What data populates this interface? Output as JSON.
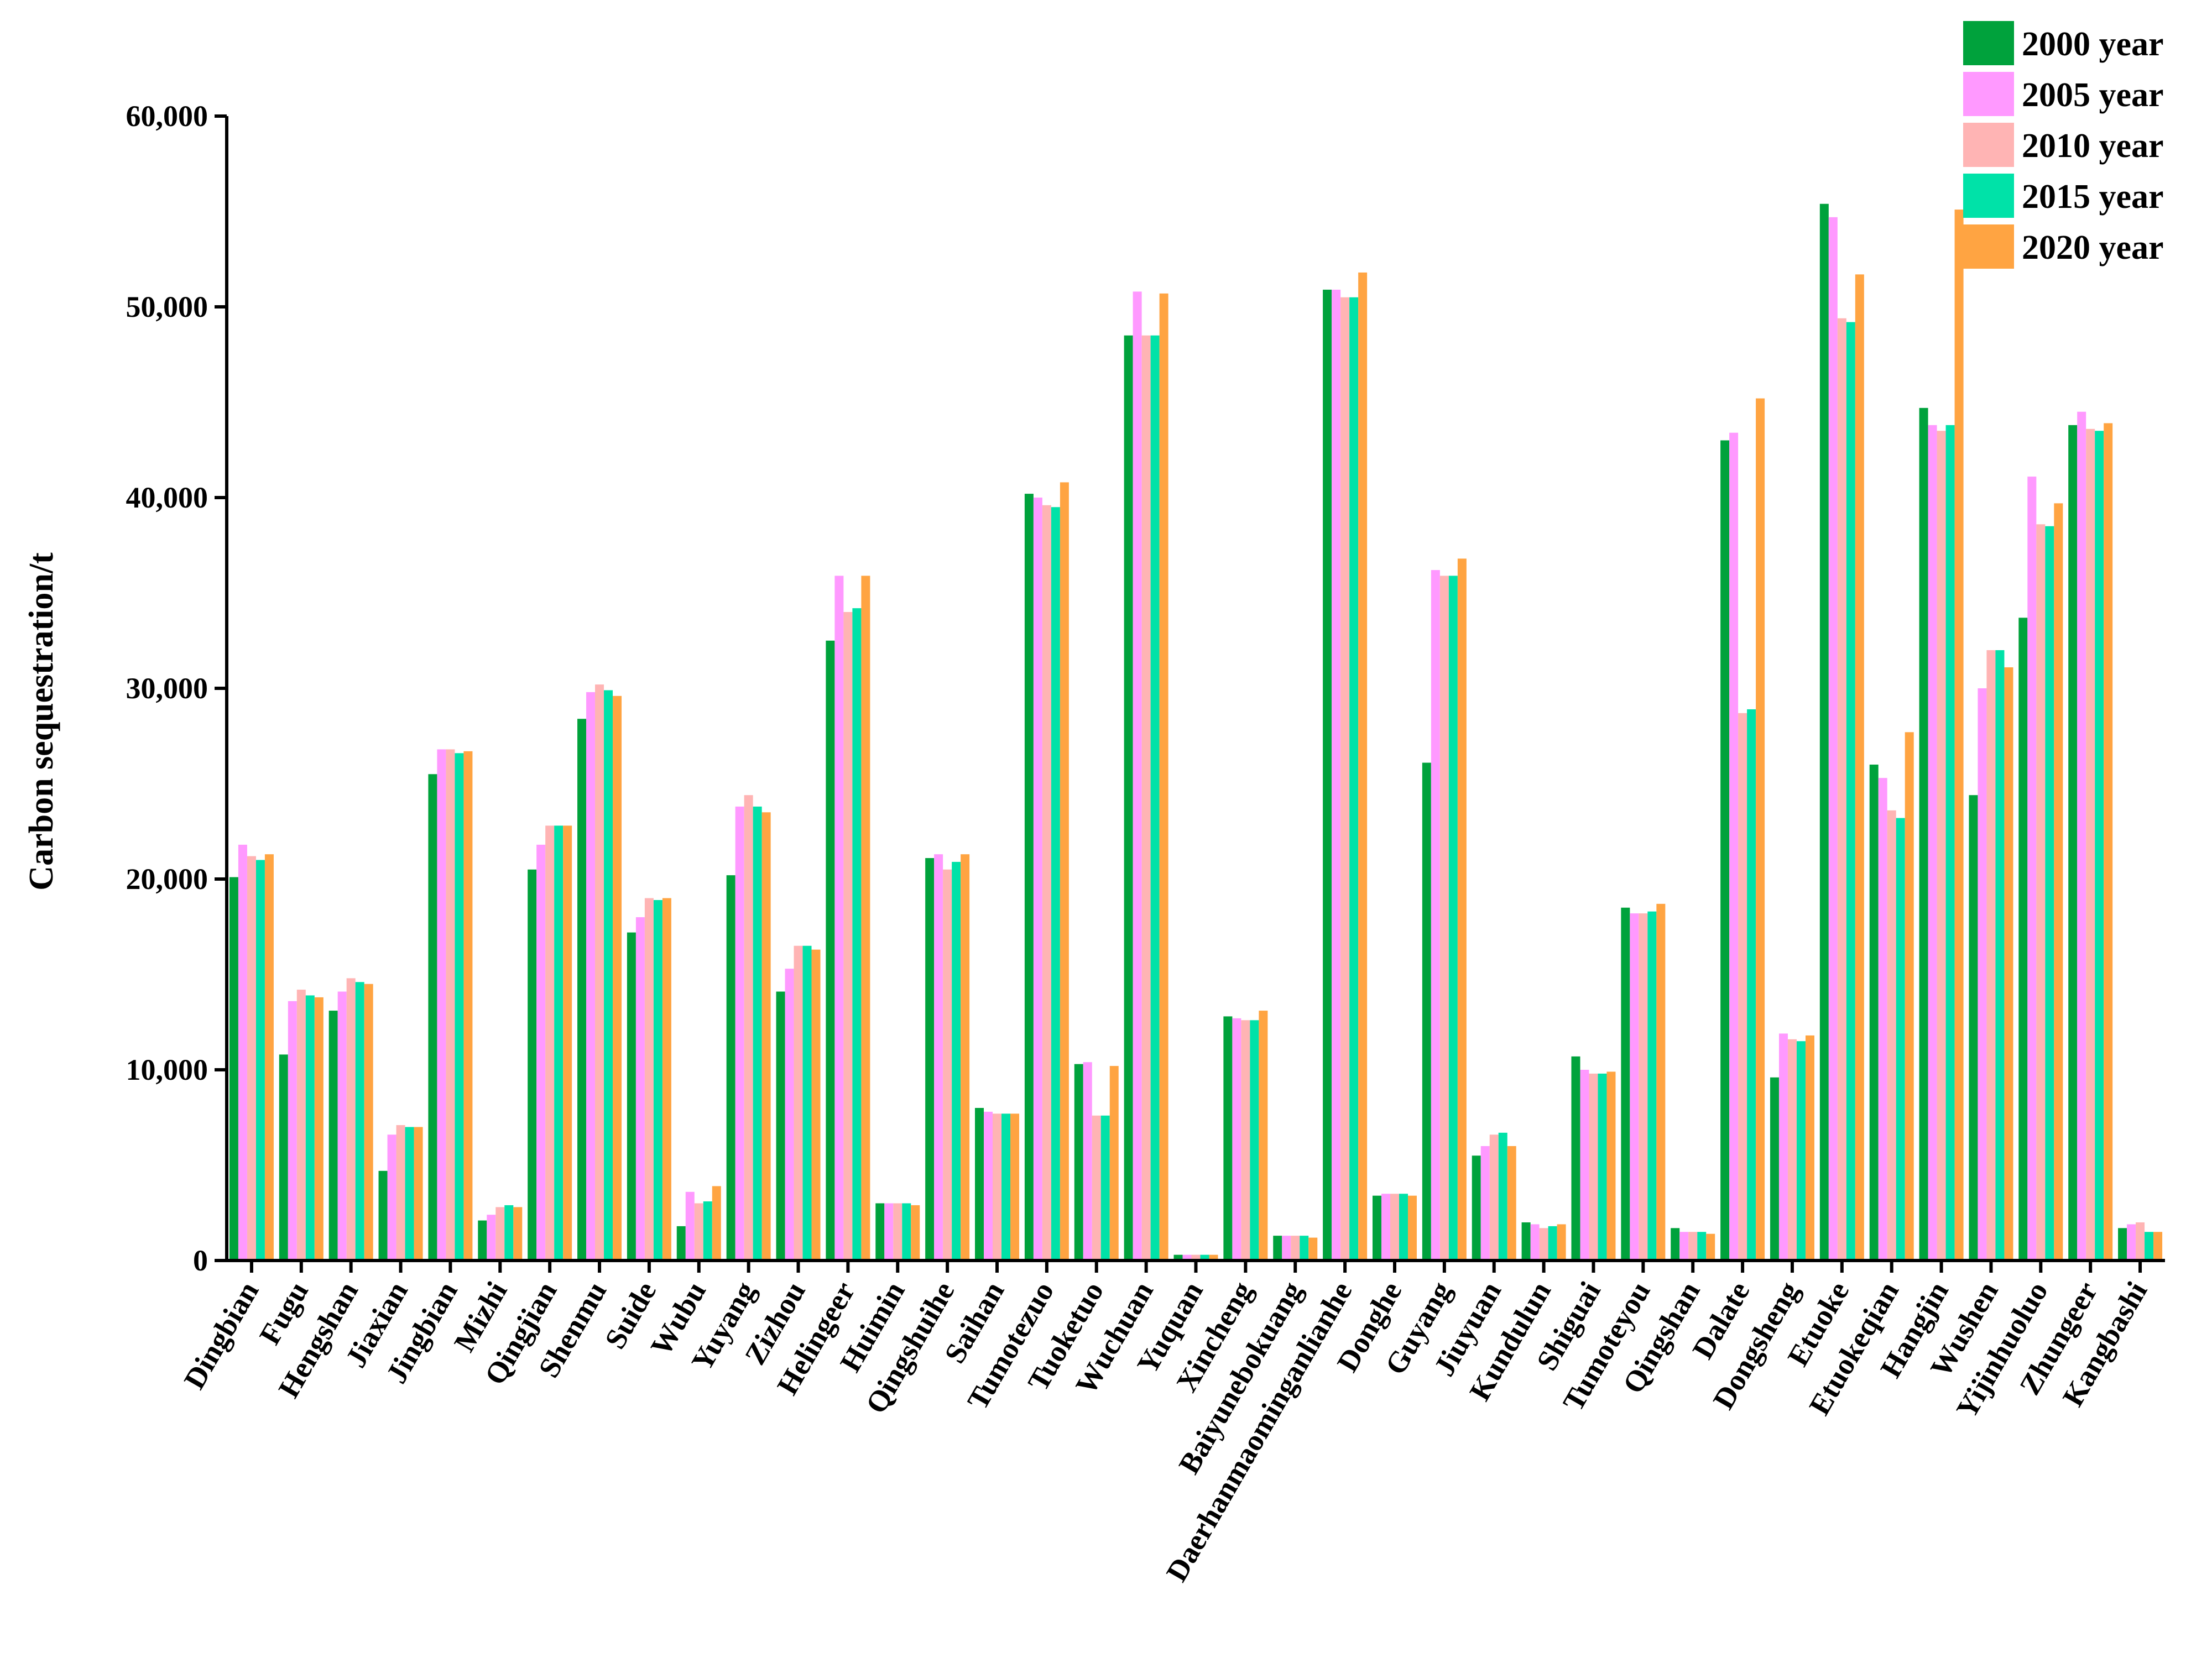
{
  "chart_data": {
    "type": "bar",
    "ylabel": "Carbon sequestration/t",
    "ylim": [
      0,
      60000
    ],
    "yticks": [
      0,
      10000,
      20000,
      30000,
      40000,
      50000,
      60000
    ],
    "ytick_labels": [
      "0",
      "10,000",
      "20,000",
      "30,000",
      "40,000",
      "50,000",
      "60,000"
    ],
    "grid": false,
    "legend_position": "top-right",
    "categories": [
      "Dingbian",
      "Fugu",
      "Hengshan",
      "Jiaxian",
      "Jingbian",
      "Mizhi",
      "Qingjian",
      "Shenmu",
      "Suide",
      "Wubu",
      "Yuyang",
      "Zizhou",
      "Helingeer",
      "Huimin",
      "Qingshuihe",
      "Saihan",
      "Tumotezuo",
      "Tuoketuo",
      "Wuchuan",
      "Yuquan",
      "Xincheng",
      "Baiyunebokuang",
      "Daerhanmaominganlianhe",
      "Donghe",
      "Guyang",
      "Jiuyuan",
      "Kundulun",
      "Shiguai",
      "Tumoteyou",
      "Qingshan",
      "Dalate",
      "Dongsheng",
      "Etuoke",
      "Etuokeqian",
      "Hangjin",
      "Wushen",
      "Yijinhuoluo",
      "Zhungeer",
      "Kangbashi"
    ],
    "series": [
      {
        "name": "2000 year",
        "color": "#00a23c",
        "values": [
          20100,
          10800,
          13100,
          4700,
          25500,
          2100,
          20500,
          28400,
          17200,
          1800,
          20200,
          14100,
          32500,
          3000,
          21100,
          8000,
          40200,
          10300,
          48500,
          300,
          12800,
          1300,
          50900,
          3400,
          26100,
          5500,
          2000,
          10700,
          18500,
          1700,
          43000,
          9600,
          55400,
          26000,
          44700,
          24400,
          33700,
          43800,
          1700
        ]
      },
      {
        "name": "2005 year",
        "color": "#ff99ff",
        "values": [
          21800,
          13600,
          14100,
          6600,
          26800,
          2400,
          21800,
          29800,
          18000,
          3600,
          23800,
          15300,
          35900,
          3000,
          21300,
          7800,
          40000,
          10400,
          50800,
          300,
          12700,
          1300,
          50900,
          3500,
          36200,
          6000,
          1900,
          10000,
          18200,
          1500,
          43400,
          11900,
          54700,
          25300,
          43800,
          30000,
          41100,
          44500,
          1900
        ]
      },
      {
        "name": "2010 year",
        "color": "#ffb4b4",
        "values": [
          21200,
          14200,
          14800,
          7100,
          26800,
          2800,
          22800,
          30200,
          19000,
          3000,
          24400,
          16500,
          34000,
          3000,
          20500,
          7700,
          39600,
          7600,
          48500,
          300,
          12600,
          1300,
          50500,
          3500,
          35900,
          6600,
          1700,
          9800,
          18200,
          1500,
          28700,
          11600,
          49400,
          23600,
          43500,
          32000,
          38600,
          43600,
          2000
        ]
      },
      {
        "name": "2015 year",
        "color": "#00e2a8",
        "values": [
          21000,
          13900,
          14600,
          7000,
          26600,
          2900,
          22800,
          29900,
          18900,
          3100,
          23800,
          16500,
          34200,
          3000,
          20900,
          7700,
          39500,
          7600,
          48500,
          300,
          12600,
          1300,
          50500,
          3500,
          35900,
          6700,
          1800,
          9800,
          18300,
          1500,
          28900,
          11500,
          49200,
          23200,
          43800,
          32000,
          38500,
          43500,
          1500
        ]
      },
      {
        "name": "2020 year",
        "color": "#ffa442",
        "values": [
          21300,
          13800,
          14500,
          7000,
          26700,
          2800,
          22800,
          29600,
          19000,
          3900,
          23500,
          16300,
          35900,
          2900,
          21300,
          7700,
          40800,
          10200,
          50700,
          300,
          13100,
          1200,
          51800,
          3400,
          36800,
          6000,
          1900,
          9900,
          18700,
          1400,
          45200,
          11800,
          51700,
          27700,
          55100,
          31100,
          39700,
          43900,
          1500
        ]
      }
    ]
  }
}
